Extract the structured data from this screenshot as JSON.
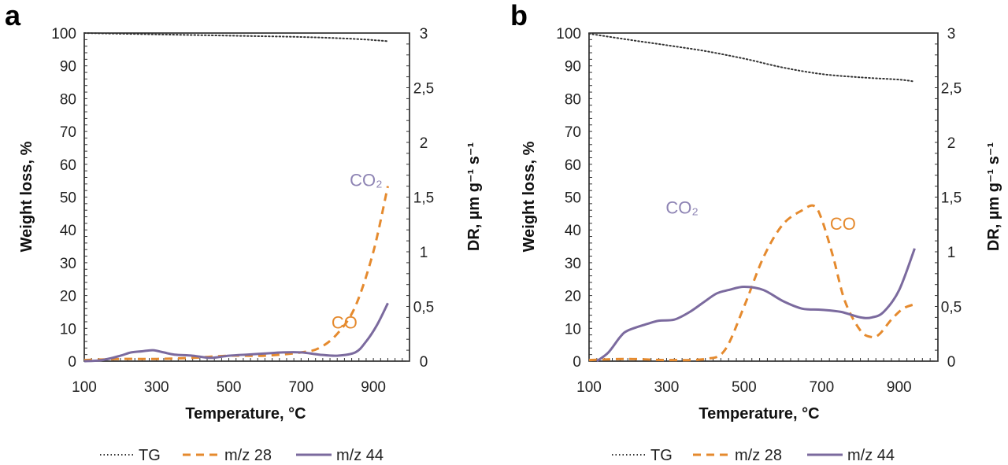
{
  "colors": {
    "tg": "#333333",
    "co": "#E58A2E",
    "co2": "#7B6A9E",
    "co_label": "#E58A2E",
    "co2_label": "#8E84B4"
  },
  "legend": [
    "TG",
    "m/z 28",
    "m/z 44"
  ],
  "chart_data": [
    {
      "panel": "a",
      "type": "line",
      "xlabel": "Temperature, °C",
      "ylabel": "Weight loss, %",
      "y2label": "DR, µm g⁻¹ s⁻¹",
      "xlim": [
        100,
        1000
      ],
      "ylim": [
        0,
        100
      ],
      "y2lim": [
        0,
        3
      ],
      "xticks": [
        "100",
        "300",
        "500",
        "700",
        "900"
      ],
      "yticks": [
        "0",
        "10",
        "20",
        "30",
        "40",
        "50",
        "60",
        "70",
        "80",
        "90",
        "100"
      ],
      "y2ticks": [
        "0",
        "0,5",
        "1",
        "1,5",
        "2",
        "2,5",
        "3"
      ],
      "annotations": [
        {
          "text": "CO",
          "series": "m/z 28",
          "x": 820,
          "y2": 0.3
        },
        {
          "text": "CO₂",
          "series": "m/z 44",
          "x": 880,
          "y2": 1.6
        }
      ],
      "series": [
        {
          "name": "TG",
          "axis": "left",
          "x": [
            100,
            300,
            500,
            700,
            850,
            940
          ],
          "y": [
            100,
            99.6,
            99.2,
            98.8,
            98.2,
            97.5
          ]
        },
        {
          "name": "m/z 28",
          "axis": "right",
          "x": [
            100,
            200,
            300,
            400,
            500,
            600,
            700,
            750,
            800,
            850,
            900,
            940
          ],
          "y": [
            0.01,
            0.02,
            0.02,
            0.03,
            0.05,
            0.05,
            0.08,
            0.12,
            0.25,
            0.5,
            1.0,
            1.6
          ]
        },
        {
          "name": "m/z 44",
          "axis": "right",
          "x": [
            100,
            150,
            200,
            230,
            260,
            290,
            320,
            350,
            400,
            450,
            500,
            550,
            600,
            650,
            700,
            750,
            800,
            850,
            880,
            910,
            940
          ],
          "y": [
            0.0,
            0.01,
            0.05,
            0.08,
            0.09,
            0.1,
            0.08,
            0.06,
            0.05,
            0.03,
            0.05,
            0.06,
            0.07,
            0.08,
            0.08,
            0.06,
            0.05,
            0.08,
            0.18,
            0.33,
            0.53
          ]
        }
      ]
    },
    {
      "panel": "b",
      "type": "line",
      "xlabel": "Temperature, °C",
      "ylabel": "Weight loss, %",
      "y2label": "DR, µm g⁻¹ s⁻¹",
      "xlim": [
        100,
        1000
      ],
      "ylim": [
        0,
        100
      ],
      "y2lim": [
        0,
        3
      ],
      "xticks": [
        "100",
        "300",
        "500",
        "700",
        "900"
      ],
      "yticks": [
        "0",
        "10",
        "20",
        "30",
        "40",
        "50",
        "60",
        "70",
        "80",
        "90",
        "100"
      ],
      "y2ticks": [
        "0",
        "0,5",
        "1",
        "1,5",
        "2",
        "2,5",
        "3"
      ],
      "annotations": [
        {
          "text": "CO₂",
          "series": "m/z 44",
          "x": 340,
          "y2": 1.35
        },
        {
          "text": "CO",
          "series": "m/z 28",
          "x": 755,
          "y2": 1.2
        }
      ],
      "series": [
        {
          "name": "TG",
          "axis": "left",
          "x": [
            100,
            200,
            300,
            400,
            500,
            600,
            700,
            800,
            900,
            940
          ],
          "y": [
            99.8,
            98,
            96.3,
            94.5,
            92.2,
            89.5,
            87.5,
            86.5,
            85.8,
            85.2
          ]
        },
        {
          "name": "m/z 28",
          "axis": "right",
          "x": [
            100,
            200,
            300,
            400,
            450,
            500,
            550,
            600,
            650,
            680,
            700,
            730,
            760,
            800,
            830,
            850,
            880,
            910,
            940
          ],
          "y": [
            0.01,
            0.02,
            0.01,
            0.02,
            0.1,
            0.5,
            0.95,
            1.25,
            1.38,
            1.42,
            1.3,
            0.95,
            0.55,
            0.28,
            0.22,
            0.25,
            0.38,
            0.48,
            0.52
          ]
        },
        {
          "name": "m/z 44",
          "axis": "right",
          "x": [
            120,
            150,
            180,
            200,
            250,
            280,
            320,
            360,
            400,
            430,
            460,
            500,
            550,
            600,
            650,
            700,
            750,
            800,
            830,
            860,
            900,
            940
          ],
          "y": [
            0.0,
            0.08,
            0.22,
            0.28,
            0.34,
            0.37,
            0.38,
            0.45,
            0.55,
            0.62,
            0.65,
            0.68,
            0.65,
            0.55,
            0.48,
            0.47,
            0.45,
            0.4,
            0.4,
            0.45,
            0.65,
            1.03
          ]
        }
      ]
    }
  ]
}
